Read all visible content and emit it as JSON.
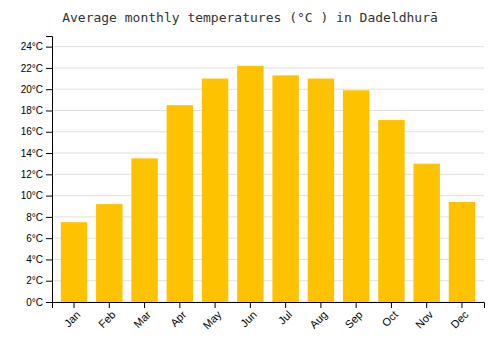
{
  "chart_data": {
    "type": "bar",
    "title": "Average monthly temperatures (°C ) in Dadeldhurā",
    "categories": [
      "Jan",
      "Feb",
      "Mar",
      "Apr",
      "May",
      "Jun",
      "Jul",
      "Aug",
      "Sep",
      "Oct",
      "Nov",
      "Dec"
    ],
    "values": [
      7.5,
      9.2,
      13.5,
      18.5,
      21.0,
      22.2,
      21.3,
      21.0,
      19.9,
      17.1,
      13.0,
      9.4
    ],
    "color": "#FFC200",
    "ylim": [
      0,
      25
    ],
    "yticks": [
      {
        "value": 0,
        "label": "0°C"
      },
      {
        "value": 2,
        "label": "2°C"
      },
      {
        "value": 4,
        "label": "4°C"
      },
      {
        "value": 6,
        "label": "6°C"
      },
      {
        "value": 8,
        "label": "8°C"
      },
      {
        "value": 10,
        "label": "10°C"
      },
      {
        "value": 12,
        "label": "12°C"
      },
      {
        "value": 14,
        "label": "14°C"
      },
      {
        "value": 16,
        "label": "16°C"
      },
      {
        "value": 18,
        "label": "18°C"
      },
      {
        "value": 20,
        "label": "20°C"
      },
      {
        "value": 22,
        "label": "22°C"
      },
      {
        "value": 24,
        "label": "24°C"
      }
    ],
    "grid": true
  }
}
